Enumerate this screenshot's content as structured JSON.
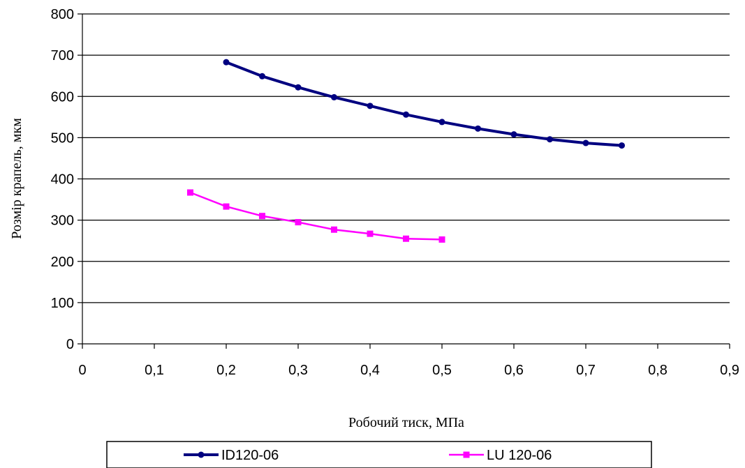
{
  "chart_data": {
    "type": "line",
    "xlabel": "Робочий тиск, МПа",
    "ylabel": "Розмір крапель, мкм",
    "xlim": [
      0,
      0.9
    ],
    "ylim": [
      0,
      800
    ],
    "x_ticks": [
      0,
      0.1,
      0.2,
      0.3,
      0.4,
      0.5,
      0.6,
      0.7,
      0.8,
      0.9
    ],
    "x_tick_labels": [
      "0",
      "0,1",
      "0,2",
      "0,3",
      "0,4",
      "0,5",
      "0,6",
      "0,7",
      "0,8",
      "0,9"
    ],
    "y_ticks": [
      0,
      100,
      200,
      300,
      400,
      500,
      600,
      700,
      800
    ],
    "y_tick_labels": [
      "0",
      "100",
      "200",
      "300",
      "400",
      "500",
      "600",
      "700",
      "800"
    ],
    "grid": "horizontal",
    "legend_position": "bottom",
    "series": [
      {
        "name": "ID120-06",
        "color": "#000080",
        "marker": "circle",
        "x": [
          0.2,
          0.25,
          0.3,
          0.35,
          0.4,
          0.45,
          0.5,
          0.55,
          0.6,
          0.65,
          0.7,
          0.75
        ],
        "y": [
          683,
          649,
          622,
          598,
          577,
          556,
          538,
          522,
          508,
          496,
          487,
          481
        ]
      },
      {
        "name": "LU 120-06",
        "color": "#ff00ff",
        "marker": "square",
        "x": [
          0.15,
          0.2,
          0.25,
          0.3,
          0.35,
          0.4,
          0.45,
          0.5
        ],
        "y": [
          367,
          333,
          310,
          295,
          277,
          267,
          255,
          253
        ]
      }
    ]
  }
}
